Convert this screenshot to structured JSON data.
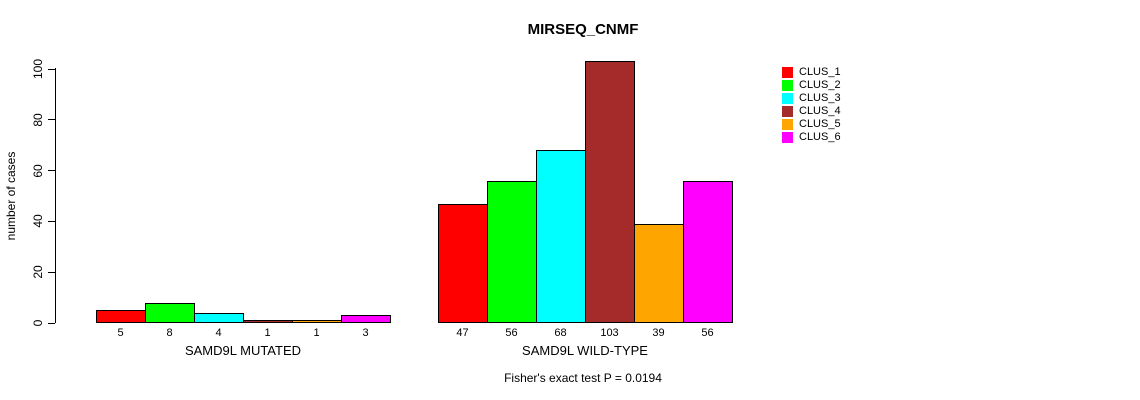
{
  "chart_data": {
    "type": "bar",
    "title": "MIRSEQ_CNMF",
    "ylabel": "number of cases",
    "ylim": [
      0,
      100
    ],
    "yticks": [
      0,
      20,
      40,
      60,
      80,
      100
    ],
    "grid": false,
    "categories": [
      "CLUS_1",
      "CLUS_2",
      "CLUS_3",
      "CLUS_4",
      "CLUS_5",
      "CLUS_6"
    ],
    "colors": [
      "#ff0000",
      "#00ff00",
      "#00ffff",
      "#a52a2a",
      "#ffa500",
      "#ff00ff"
    ],
    "groups": [
      {
        "label": "SAMD9L MUTATED",
        "values": [
          5,
          8,
          4,
          1,
          1,
          3
        ]
      },
      {
        "label": "SAMD9L WILD-TYPE",
        "values": [
          47,
          56,
          68,
          103,
          39,
          56
        ]
      }
    ],
    "legend": {
      "position": "right",
      "entries": [
        "CLUS_1",
        "CLUS_2",
        "CLUS_3",
        "CLUS_4",
        "CLUS_5",
        "CLUS_6"
      ]
    },
    "footnote": "Fisher's exact test P = 0.0194"
  }
}
